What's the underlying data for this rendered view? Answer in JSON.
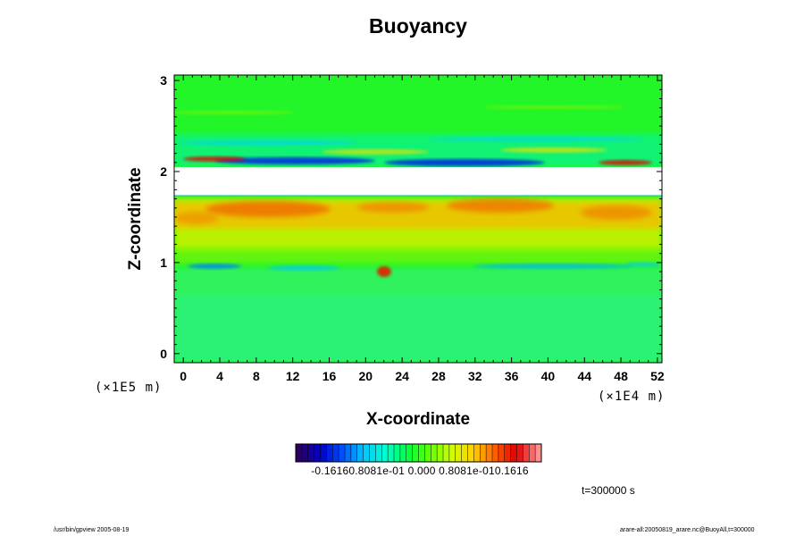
{
  "chart_data": {
    "type": "heatmap",
    "title": "Buoyancy",
    "xlabel": "X-coordinate",
    "ylabel": "Z-coordinate",
    "x_scale_note": "(×1E4 m)",
    "y_scale_note": "(×1E5 m)",
    "xlim": [
      -1,
      52.5
    ],
    "ylim": [
      -0.1,
      3.06
    ],
    "x_ticks": [
      "0",
      "4",
      "8",
      "12",
      "16",
      "20",
      "24",
      "28",
      "32",
      "36",
      "40",
      "44",
      "48",
      "52"
    ],
    "y_ticks": [
      "0",
      "1",
      "2",
      "3"
    ],
    "colorbar": {
      "min": -0.1616,
      "max": 0.1616,
      "label_text": "-0.16160.8081e-01 0.000 0.8081e-010.1616",
      "colors": [
        "#2b0060",
        "#0000c8",
        "#0050ff",
        "#00c8ff",
        "#00ffd0",
        "#00ff40",
        "#60ff00",
        "#d0ff00",
        "#ffd000",
        "#ff6000",
        "#e00000",
        "#ff9090"
      ]
    },
    "bands": [
      {
        "z": [
          -0.1,
          0.85
        ],
        "value": 0.0
      },
      {
        "z": [
          0.85,
          1.05
        ],
        "value": -0.01
      },
      {
        "z": [
          1.05,
          1.35
        ],
        "value": 0.015
      },
      {
        "z": [
          1.35,
          1.72
        ],
        "value": 0.05
      },
      {
        "z": [
          1.72,
          2.07
        ],
        "value": null
      },
      {
        "z": [
          2.07,
          2.4
        ],
        "value": -0.02
      },
      {
        "z": [
          2.4,
          3.06
        ],
        "value": 0.0
      }
    ],
    "time_label": "t=300000 s"
  },
  "footer": {
    "left": "/usr/bin/gpview 2005-08-19",
    "right": "arare-all:20050819_arare.nc@BuoyAll,t=300000"
  }
}
